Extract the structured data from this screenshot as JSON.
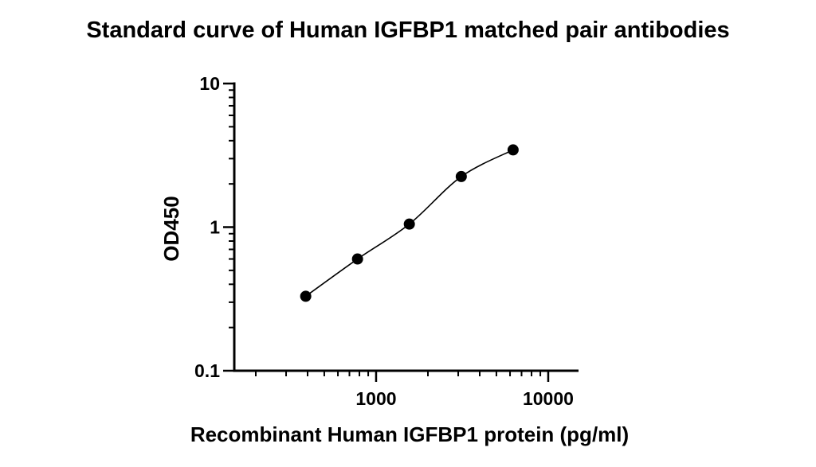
{
  "chart_data": {
    "type": "scatter",
    "title": "Standard curve of Human IGFBP1 matched pair antibodies",
    "xlabel": "Recombinant Human IGFBP1 protein (pg/ml)",
    "ylabel": "OD450",
    "x_scale": "log",
    "y_scale": "log",
    "xlim": [
      150,
      15000
    ],
    "ylim": [
      0.1,
      10
    ],
    "x_ticks": [
      {
        "value": 1000,
        "label": "1000"
      },
      {
        "value": 10000,
        "label": "10000"
      }
    ],
    "y_ticks": [
      {
        "value": 0.1,
        "label": "0.1"
      },
      {
        "value": 1,
        "label": "1"
      },
      {
        "value": 10,
        "label": "10"
      }
    ],
    "grid": false,
    "legend": "none",
    "fit_curve": true,
    "marker_color": "#000000",
    "series": [
      {
        "x": [
          390,
          780,
          1560,
          3125,
          6250
        ],
        "y": [
          0.33,
          0.6,
          1.05,
          2.25,
          3.45
        ]
      }
    ]
  }
}
